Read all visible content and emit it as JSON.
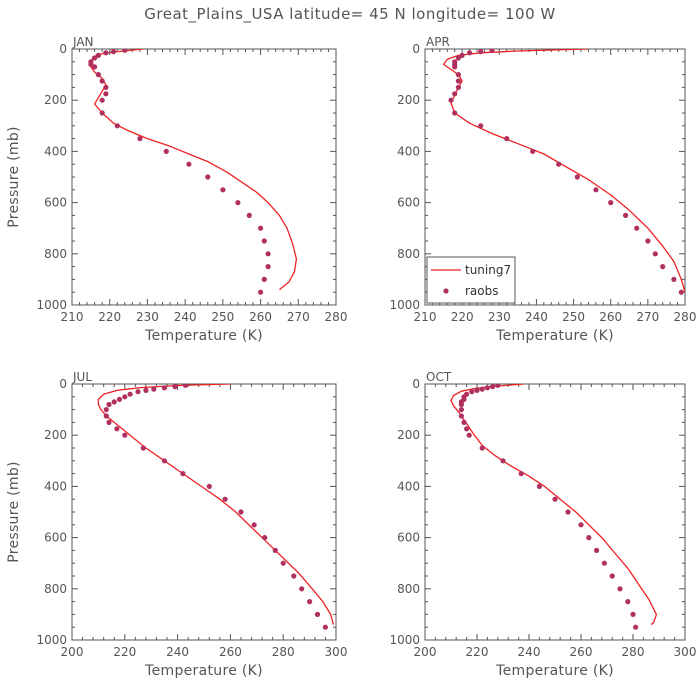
{
  "title": "Great_Plains_USA   latitude= 45 N longitude= 100 W",
  "legend": {
    "model": "tuning7",
    "obs": "raobs",
    "placement": "bottom-left of APR panel"
  },
  "colors": {
    "model": "#ee2222",
    "obs": "#b03060",
    "axis": "#555555",
    "text": "#555555"
  },
  "chart_data": [
    {
      "type": "line",
      "month": "JAN",
      "xlabel": "Temperature (K)",
      "ylabel": "Pressure (mb)",
      "xlim": [
        210,
        280
      ],
      "ylim": [
        1000,
        0
      ],
      "xticks": [
        210,
        220,
        230,
        240,
        250,
        260,
        270,
        280
      ],
      "yticks": [
        0,
        200,
        400,
        600,
        800,
        1000
      ],
      "legend": false,
      "series": [
        {
          "name": "tuning7",
          "kind": "line",
          "points": [
            [
              229,
              0
            ],
            [
              222,
              10
            ],
            [
              218,
              18
            ],
            [
              216,
              28
            ],
            [
              215,
              45
            ],
            [
              215,
              70
            ],
            [
              216,
              90
            ],
            [
              218,
              115
            ],
            [
              219,
              140
            ],
            [
              218,
              165
            ],
            [
              217,
              190
            ],
            [
              216,
              215
            ],
            [
              218,
              250
            ],
            [
              221,
              290
            ],
            [
              225,
              320
            ],
            [
              230,
              350
            ],
            [
              236,
              380
            ],
            [
              241,
              410
            ],
            [
              246,
              440
            ],
            [
              251,
              480
            ],
            [
              255,
              520
            ],
            [
              259,
              560
            ],
            [
              262,
              600
            ],
            [
              265,
              650
            ],
            [
              267,
              700
            ],
            [
              268.5,
              760
            ],
            [
              269.5,
              820
            ],
            [
              269,
              870
            ],
            [
              267.5,
              910
            ],
            [
              265,
              940
            ]
          ]
        },
        {
          "name": "raobs",
          "kind": "scatter",
          "points": [
            [
              224,
              5
            ],
            [
              221,
              10
            ],
            [
              219,
              15
            ],
            [
              217,
              25
            ],
            [
              216,
              35
            ],
            [
              215,
              50
            ],
            [
              215,
              60
            ],
            [
              216,
              70
            ],
            [
              217,
              100
            ],
            [
              218,
              125
            ],
            [
              219,
              150
            ],
            [
              219,
              175
            ],
            [
              218,
              200
            ],
            [
              218,
              250
            ],
            [
              222,
              300
            ],
            [
              228,
              350
            ],
            [
              235,
              400
            ],
            [
              241,
              450
            ],
            [
              246,
              500
            ],
            [
              250,
              550
            ],
            [
              254,
              600
            ],
            [
              257,
              650
            ],
            [
              260,
              700
            ],
            [
              261,
              750
            ],
            [
              262,
              800
            ],
            [
              262,
              850
            ],
            [
              261,
              900
            ],
            [
              260,
              950
            ]
          ]
        }
      ]
    },
    {
      "type": "line",
      "month": "APR",
      "xlabel": "Temperature (K)",
      "ylabel": "",
      "xlim": [
        210,
        280
      ],
      "ylim": [
        1000,
        0
      ],
      "xticks": [
        210,
        220,
        230,
        240,
        250,
        260,
        270,
        280
      ],
      "yticks": [
        0,
        200,
        400,
        600,
        800,
        1000
      ],
      "legend": true,
      "series": [
        {
          "name": "tuning7",
          "kind": "line",
          "points": [
            [
              254,
              0
            ],
            [
              235,
              8
            ],
            [
              225,
              15
            ],
            [
              219,
              25
            ],
            [
              216,
              40
            ],
            [
              215,
              60
            ],
            [
              217,
              80
            ],
            [
              219,
              100
            ],
            [
              220,
              125
            ],
            [
              219,
              150
            ],
            [
              218,
              180
            ],
            [
              217,
              210
            ],
            [
              218,
              250
            ],
            [
              222,
              290
            ],
            [
              228,
              330
            ],
            [
              235,
              370
            ],
            [
              242,
              410
            ],
            [
              248,
              460
            ],
            [
              254,
              510
            ],
            [
              260,
              570
            ],
            [
              265,
              630
            ],
            [
              270,
              700
            ],
            [
              274,
              770
            ],
            [
              277,
              830
            ],
            [
              279,
              900
            ],
            [
              280,
              950
            ]
          ]
        },
        {
          "name": "raobs",
          "kind": "scatter",
          "points": [
            [
              228,
              5
            ],
            [
              225,
              10
            ],
            [
              222,
              15
            ],
            [
              220,
              25
            ],
            [
              219,
              35
            ],
            [
              218,
              50
            ],
            [
              218,
              60
            ],
            [
              218,
              70
            ],
            [
              219,
              100
            ],
            [
              219,
              125
            ],
            [
              219,
              150
            ],
            [
              218,
              175
            ],
            [
              217,
              200
            ],
            [
              218,
              250
            ],
            [
              225,
              300
            ],
            [
              232,
              350
            ],
            [
              239,
              400
            ],
            [
              246,
              450
            ],
            [
              251,
              500
            ],
            [
              256,
              550
            ],
            [
              260,
              600
            ],
            [
              264,
              650
            ],
            [
              267,
              700
            ],
            [
              270,
              750
            ],
            [
              272,
              800
            ],
            [
              274,
              850
            ],
            [
              277,
              900
            ],
            [
              279,
              950
            ]
          ]
        }
      ]
    },
    {
      "type": "line",
      "month": "JUL",
      "xlabel": "Temperature (K)",
      "ylabel": "Pressure (mb)",
      "xlim": [
        200,
        300
      ],
      "ylim": [
        1000,
        0
      ],
      "xticks": [
        200,
        220,
        240,
        260,
        280,
        300
      ],
      "yticks": [
        0,
        200,
        400,
        600,
        800,
        1000
      ],
      "legend": false,
      "series": [
        {
          "name": "tuning7",
          "kind": "line",
          "points": [
            [
              260,
              0
            ],
            [
              240,
              6
            ],
            [
              226,
              14
            ],
            [
              217,
              25
            ],
            [
              212,
              40
            ],
            [
              210,
              60
            ],
            [
              210,
              80
            ],
            [
              211,
              100
            ],
            [
              213,
              125
            ],
            [
              216,
              150
            ],
            [
              219,
              175
            ],
            [
              222,
              200
            ],
            [
              228,
              250
            ],
            [
              235,
              300
            ],
            [
              242,
              350
            ],
            [
              249,
              400
            ],
            [
              256,
              450
            ],
            [
              262,
              500
            ],
            [
              268,
              560
            ],
            [
              274,
              620
            ],
            [
              280,
              680
            ],
            [
              286,
              740
            ],
            [
              291,
              800
            ],
            [
              295,
              850
            ],
            [
              298,
              900
            ],
            [
              299,
              940
            ]
          ]
        },
        {
          "name": "raobs",
          "kind": "scatter",
          "points": [
            [
              243,
              5
            ],
            [
              239,
              10
            ],
            [
              235,
              15
            ],
            [
              231,
              20
            ],
            [
              228,
              25
            ],
            [
              225,
              30
            ],
            [
              222,
              40
            ],
            [
              220,
              50
            ],
            [
              218,
              60
            ],
            [
              216,
              70
            ],
            [
              214,
              80
            ],
            [
              213,
              100
            ],
            [
              213,
              125
            ],
            [
              214,
              150
            ],
            [
              217,
              175
            ],
            [
              220,
              200
            ],
            [
              227,
              250
            ],
            [
              235,
              300
            ],
            [
              242,
              350
            ],
            [
              252,
              400
            ],
            [
              258,
              450
            ],
            [
              264,
              500
            ],
            [
              269,
              550
            ],
            [
              273,
              600
            ],
            [
              277,
              650
            ],
            [
              280,
              700
            ],
            [
              284,
              750
            ],
            [
              287,
              800
            ],
            [
              290,
              850
            ],
            [
              293,
              900
            ],
            [
              296,
              950
            ]
          ]
        }
      ]
    },
    {
      "type": "line",
      "month": "OCT",
      "xlabel": "Temperature (K)",
      "ylabel": "",
      "xlim": [
        200,
        300
      ],
      "ylim": [
        1000,
        0
      ],
      "xticks": [
        200,
        220,
        240,
        260,
        280,
        300
      ],
      "yticks": [
        0,
        200,
        400,
        600,
        800,
        1000
      ],
      "legend": false,
      "series": [
        {
          "name": "tuning7",
          "kind": "line",
          "points": [
            [
              238,
              0
            ],
            [
              228,
              8
            ],
            [
              220,
              16
            ],
            [
              214,
              28
            ],
            [
              211,
              45
            ],
            [
              210,
              65
            ],
            [
              211,
              85
            ],
            [
              213,
              110
            ],
            [
              215,
              140
            ],
            [
              217,
              170
            ],
            [
              219,
              200
            ],
            [
              222,
              240
            ],
            [
              227,
              280
            ],
            [
              233,
              320
            ],
            [
              240,
              360
            ],
            [
              246,
              400
            ],
            [
              252,
              450
            ],
            [
              258,
              500
            ],
            [
              263,
              550
            ],
            [
              268,
              600
            ],
            [
              273,
              660
            ],
            [
              278,
              720
            ],
            [
              282,
              780
            ],
            [
              286,
              840
            ],
            [
              289,
              900
            ],
            [
              288,
              930
            ],
            [
              287,
              940
            ]
          ]
        },
        {
          "name": "raobs",
          "kind": "scatter",
          "points": [
            [
              228,
              5
            ],
            [
              226,
              10
            ],
            [
              224,
              15
            ],
            [
              222,
              20
            ],
            [
              220,
              25
            ],
            [
              218,
              30
            ],
            [
              216,
              40
            ],
            [
              215,
              50
            ],
            [
              215,
              60
            ],
            [
              214,
              70
            ],
            [
              214,
              80
            ],
            [
              214,
              100
            ],
            [
              214,
              125
            ],
            [
              215,
              150
            ],
            [
              216,
              175
            ],
            [
              217,
              200
            ],
            [
              222,
              250
            ],
            [
              230,
              300
            ],
            [
              237,
              350
            ],
            [
              244,
              400
            ],
            [
              250,
              450
            ],
            [
              255,
              500
            ],
            [
              260,
              550
            ],
            [
              263,
              600
            ],
            [
              266,
              650
            ],
            [
              269,
              700
            ],
            [
              272,
              750
            ],
            [
              275,
              800
            ],
            [
              278,
              850
            ],
            [
              280,
              900
            ],
            [
              281,
              950
            ]
          ]
        }
      ]
    }
  ]
}
